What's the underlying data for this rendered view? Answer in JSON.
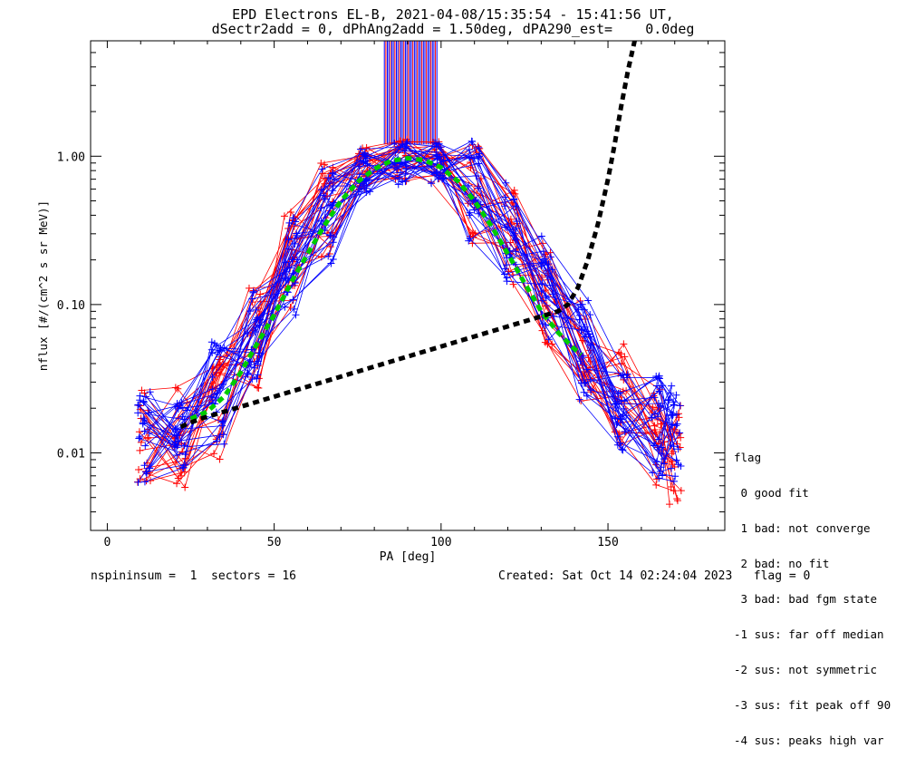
{
  "header": {
    "title_line1": "EPD Electrons EL-B, 2021-04-08/15:35:54 - 15:41:56 UT,",
    "title_line2": "dSectr2add = 0, dPhAng2add = 1.50deg, dPA290_est=    0.0deg"
  },
  "chart_data": {
    "type": "line",
    "xlabel": "PA [deg]",
    "ylabel": "nflux [#/(cm^2 s sr MeV)]",
    "xlim": [
      -5,
      185
    ],
    "ylim": [
      0.003,
      6.0
    ],
    "yscale": "log",
    "x_ticks": [
      0,
      50,
      100,
      150
    ],
    "x_tick_labels": [
      "0",
      "50",
      "100",
      "150"
    ],
    "y_ticks": [
      0.01,
      0.1,
      1.0
    ],
    "y_tick_labels": [
      "0.01",
      "0.10",
      "1.00"
    ],
    "series": [
      {
        "style": "red-plus-lines",
        "color": "#ff0000",
        "x": [
          11,
          22,
          33,
          44,
          55,
          66,
          77,
          88,
          99,
          110,
          121,
          132,
          143,
          154,
          165,
          170
        ],
        "y": [
          0.012,
          0.013,
          0.02,
          0.06,
          0.2,
          0.45,
          0.85,
          0.92,
          0.9,
          0.55,
          0.3,
          0.12,
          0.05,
          0.025,
          0.012,
          0.01
        ]
      },
      {
        "style": "blue-plus-lines",
        "color": "#0000ff",
        "x": [
          11,
          22,
          33,
          44,
          55,
          66,
          77,
          88,
          99,
          110,
          121,
          132,
          143,
          154,
          165,
          170
        ],
        "y": [
          0.014,
          0.016,
          0.025,
          0.07,
          0.18,
          0.4,
          0.8,
          0.9,
          0.88,
          0.6,
          0.32,
          0.13,
          0.05,
          0.022,
          0.015,
          0.014
        ]
      },
      {
        "style": "green-dashed-fit",
        "color": "#00cc00",
        "x": [
          25,
          30,
          35,
          40,
          45,
          50,
          55,
          60,
          65,
          70,
          75,
          80,
          85,
          90,
          95,
          100,
          105,
          110,
          115,
          120,
          125,
          130,
          135,
          140,
          142
        ],
        "y": [
          0.017,
          0.019,
          0.024,
          0.035,
          0.055,
          0.085,
          0.14,
          0.22,
          0.34,
          0.5,
          0.67,
          0.82,
          0.93,
          0.97,
          0.94,
          0.84,
          0.68,
          0.5,
          0.34,
          0.22,
          0.14,
          0.09,
          0.065,
          0.05,
          0.046
        ]
      },
      {
        "style": "black-dashed-extension",
        "color": "#000000",
        "x": [
          22,
          25,
          28,
          135,
          138,
          141,
          144,
          147,
          150,
          152,
          154,
          156,
          158
        ],
        "y": [
          0.015,
          0.016,
          0.017,
          0.09,
          0.1,
          0.13,
          0.2,
          0.35,
          0.7,
          1.2,
          2.2,
          3.8,
          6.0
        ]
      }
    ],
    "top_bars": {
      "x_range": [
        83,
        99
      ],
      "y_bottom": 1.2,
      "colors": [
        "#0000ff",
        "#ff0000"
      ]
    }
  },
  "legend": {
    "title": "flag",
    "items": [
      " 0 good fit",
      " 1 bad: not converge",
      " 2 bad: no fit",
      " 3 bad: bad fgm state",
      "-1 sus: far off median",
      "-2 sus: not symmetric",
      "-3 sus: fit peak off 90",
      "-4 sus: peaks high var"
    ]
  },
  "footer": {
    "left": "nspininsum =  1  sectors = 16",
    "right": "Created: Sat Oct 14 02:24:04 2023   flag = 0"
  }
}
